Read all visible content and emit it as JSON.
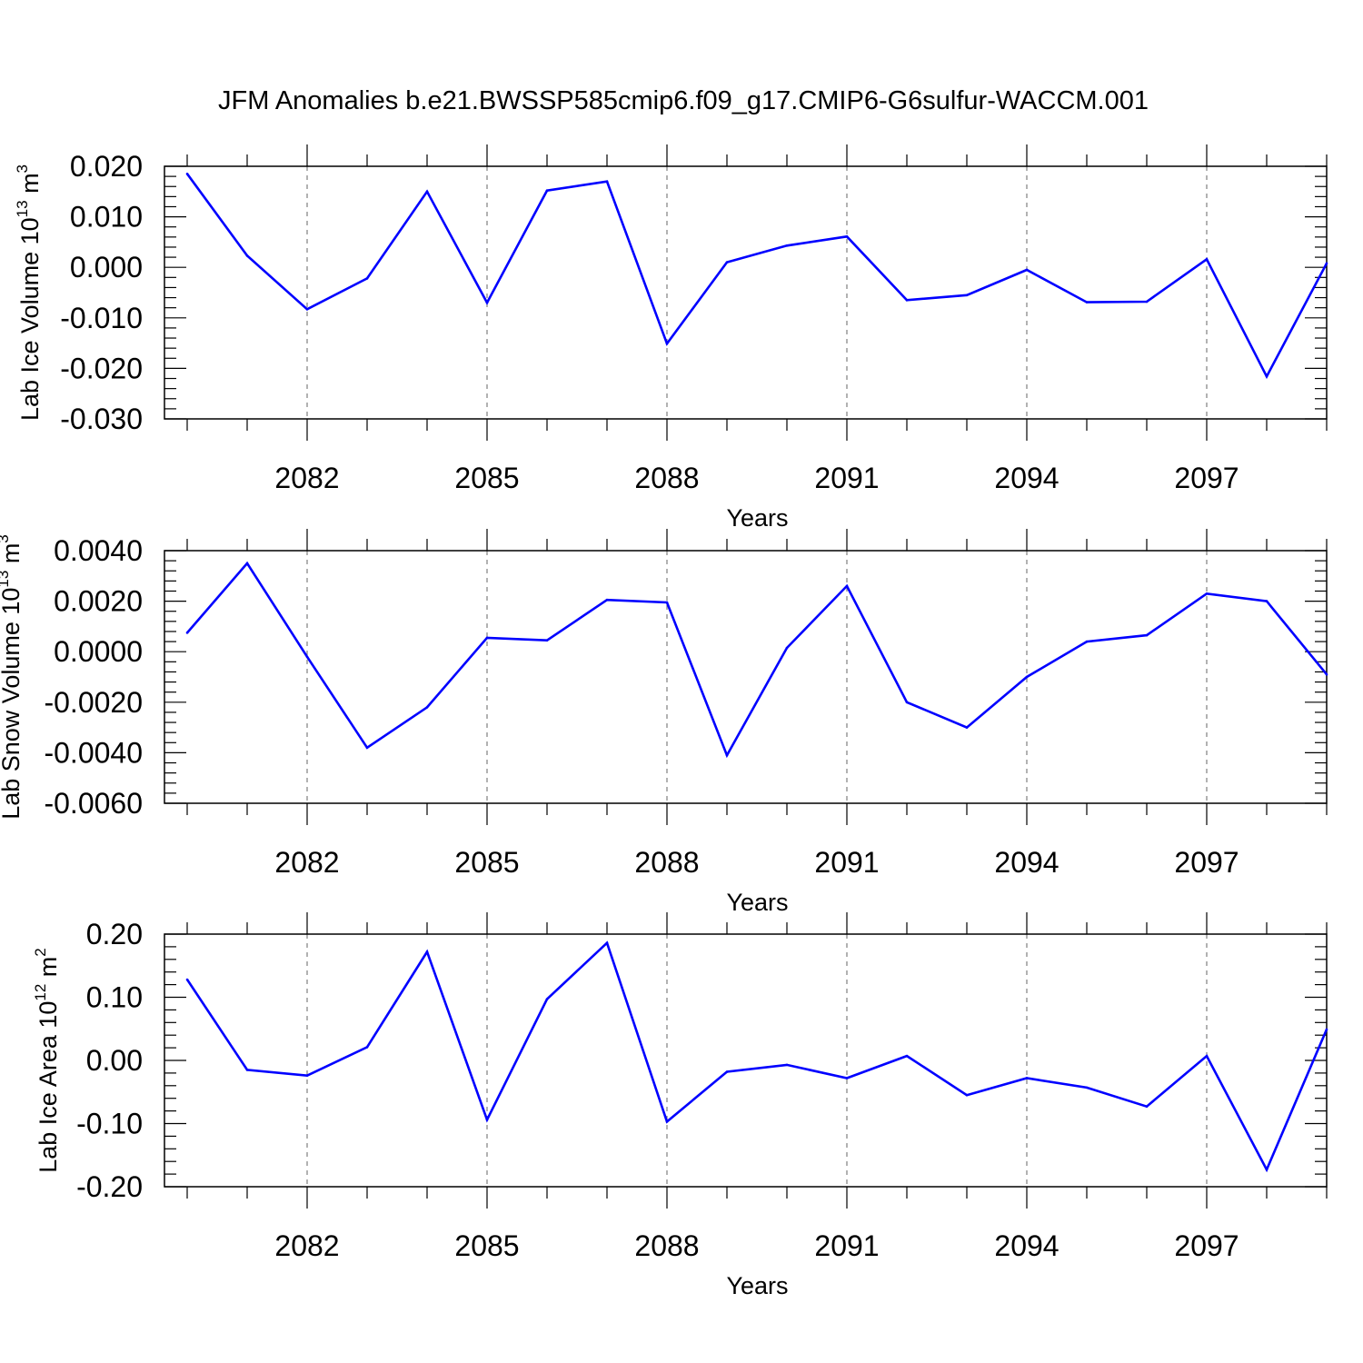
{
  "title": "JFM Anomalies b.e21.BWSSP585cmip6.f09_g17.CMIP6-G6sulfur-WACCM.001",
  "colors": {
    "series": "#0000ff",
    "axis": "#000000",
    "grid": "#7f7f7f"
  },
  "chart_data": [
    {
      "type": "line",
      "ylabel": {
        "text": "Lab Ice Volume 10",
        "sup": "13",
        "unit": " m",
        "unit_sup": "3"
      },
      "xlabel": "Years",
      "xlim": [
        2080,
        2099
      ],
      "ylim": [
        -0.03,
        0.02
      ],
      "yticks": [
        0.02,
        0.01,
        0.0,
        -0.01,
        -0.02,
        -0.03
      ],
      "ytick_labels": [
        "0.020",
        "0.010",
        "0.000",
        "-0.010",
        "-0.020",
        "-0.030"
      ],
      "xticks": [
        2082,
        2085,
        2088,
        2091,
        2094,
        2097
      ],
      "xtick_labels": [
        "2082",
        "2085",
        "2088",
        "2091",
        "2094",
        "2097"
      ],
      "grid": "vertical dashed at labeled x ticks",
      "x": [
        2080,
        2081,
        2082,
        2083,
        2084,
        2085,
        2086,
        2087,
        2088,
        2089,
        2090,
        2091,
        2092,
        2093,
        2094,
        2095,
        2096,
        2097,
        2098,
        2099
      ],
      "values": [
        0.0185,
        0.0023,
        -0.0083,
        -0.0022,
        0.015,
        -0.007,
        0.0152,
        0.017,
        -0.0151,
        0.001,
        0.0043,
        0.0061,
        -0.0065,
        -0.0055,
        -0.0005,
        -0.0069,
        -0.0068,
        0.0016,
        -0.0216,
        0.0008
      ]
    },
    {
      "type": "line",
      "ylabel": {
        "text": "Lab Snow Volume 10",
        "sup": "13",
        "unit": " m",
        "unit_sup": "3"
      },
      "xlabel": "Years",
      "xlim": [
        2080,
        2099
      ],
      "ylim": [
        -0.006,
        0.004
      ],
      "yticks": [
        0.004,
        0.002,
        0.0,
        -0.002,
        -0.004,
        -0.006
      ],
      "ytick_labels": [
        "0.0040",
        "0.0020",
        "0.0000",
        "-0.0020",
        "-0.0040",
        "-0.0060"
      ],
      "xticks": [
        2082,
        2085,
        2088,
        2091,
        2094,
        2097
      ],
      "xtick_labels": [
        "2082",
        "2085",
        "2088",
        "2091",
        "2094",
        "2097"
      ],
      "grid": "vertical dashed at labeled x ticks",
      "x": [
        2080,
        2081,
        2082,
        2083,
        2084,
        2085,
        2086,
        2087,
        2088,
        2089,
        2090,
        2091,
        2092,
        2093,
        2094,
        2095,
        2096,
        2097,
        2098,
        2099
      ],
      "values": [
        0.00075,
        0.0035,
        -0.0002,
        -0.0038,
        -0.0022,
        0.00055,
        0.00045,
        0.00205,
        0.00195,
        -0.0041,
        0.00015,
        0.0026,
        -0.002,
        -0.003,
        -0.001,
        0.0004,
        0.00065,
        0.0023,
        0.002,
        -0.0009
      ]
    },
    {
      "type": "line",
      "ylabel": {
        "text": "Lab Ice Area 10",
        "sup": "12",
        "unit": " m",
        "unit_sup": "2"
      },
      "xlabel": "Years",
      "xlim": [
        2080,
        2099
      ],
      "ylim": [
        -0.2,
        0.2
      ],
      "yticks": [
        0.2,
        0.1,
        0.0,
        -0.1,
        -0.2
      ],
      "ytick_labels": [
        "0.20",
        "0.10",
        "0.00",
        "-0.10",
        "-0.20"
      ],
      "xticks": [
        2082,
        2085,
        2088,
        2091,
        2094,
        2097
      ],
      "xtick_labels": [
        "2082",
        "2085",
        "2088",
        "2091",
        "2094",
        "2097"
      ],
      "grid": "vertical dashed at labeled x ticks",
      "x": [
        2080,
        2081,
        2082,
        2083,
        2084,
        2085,
        2086,
        2087,
        2088,
        2089,
        2090,
        2091,
        2092,
        2093,
        2094,
        2095,
        2096,
        2097,
        2098,
        2099
      ],
      "values": [
        0.128,
        -0.015,
        -0.024,
        0.021,
        0.172,
        -0.094,
        0.097,
        0.186,
        -0.097,
        -0.018,
        -0.007,
        -0.028,
        0.007,
        -0.055,
        -0.028,
        -0.043,
        -0.073,
        0.007,
        -0.173,
        0.049
      ]
    }
  ]
}
